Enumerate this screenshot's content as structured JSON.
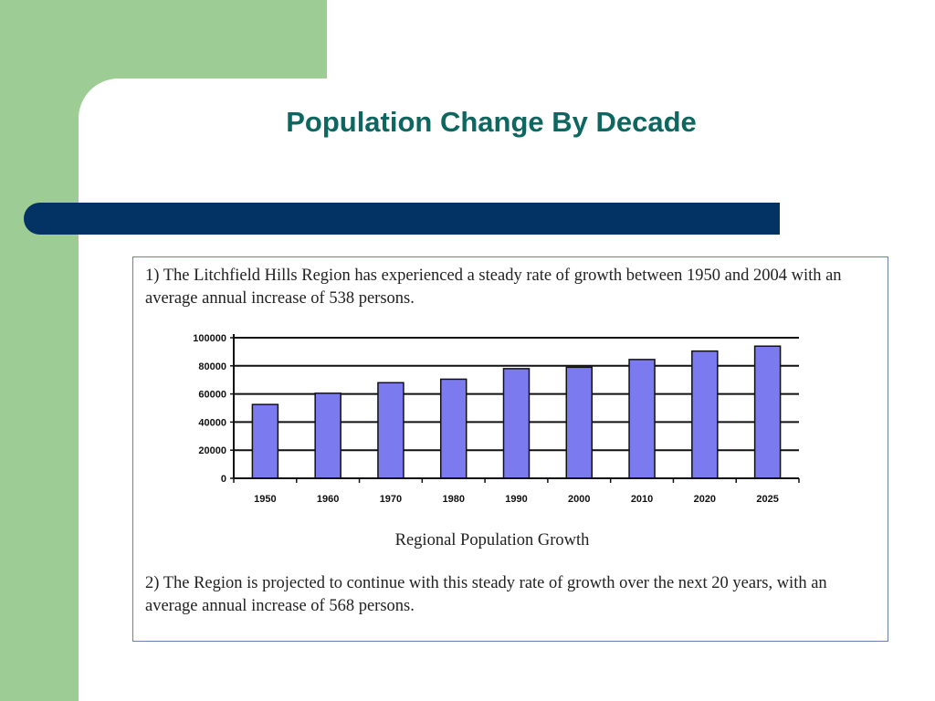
{
  "slide": {
    "title": "Population Change By Decade",
    "colors": {
      "green": "#9dcc95",
      "bar_navy": "#033264",
      "title_teal": "#0d6660",
      "chart_bar": "#7b7bef"
    }
  },
  "content": {
    "paragraph1": "1) The Litchfield Hills Region has experienced a steady rate of growth between 1950 and 2004 with an average annual increase of 538 persons.",
    "paragraph2": "2) The Region is projected to continue with this steady rate of growth over the next 20 years, with an average annual increase of 568 persons."
  },
  "chart_data": {
    "type": "bar",
    "title": "Regional Population Growth",
    "categories": [
      "1950",
      "1960",
      "1970",
      "1980",
      "1990",
      "2000",
      "2010",
      "2020",
      "2025"
    ],
    "values": [
      52500,
      60500,
      68000,
      70500,
      78000,
      79000,
      84500,
      90500,
      94000
    ],
    "yticks": [
      0,
      20000,
      40000,
      60000,
      80000,
      100000
    ],
    "ylim": [
      0,
      100000
    ],
    "grid": true,
    "legend": "none"
  }
}
